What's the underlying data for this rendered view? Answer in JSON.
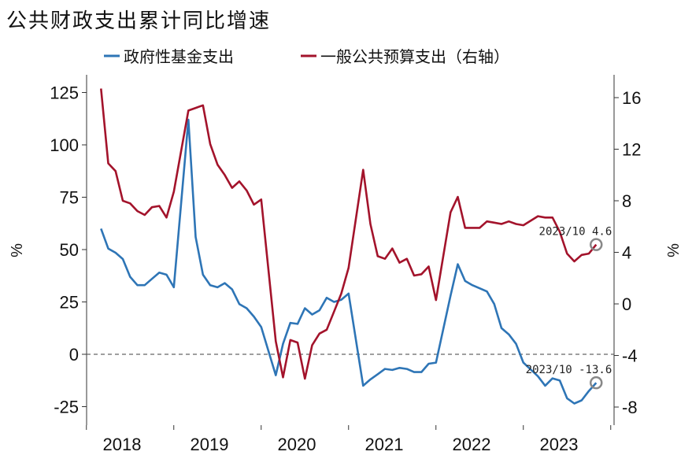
{
  "chart_data": {
    "type": "line",
    "title": "公共财政支出累计同比增速",
    "ylabel_left": "%",
    "ylabel_right": "%",
    "ylim_left": [
      -30,
      130
    ],
    "ylim_right": [
      -8.8,
      16.3
    ],
    "yticks_left": [
      125,
      100,
      75,
      50,
      25,
      0,
      -25
    ],
    "yticks_right": [
      16,
      12,
      8,
      4,
      0,
      -4,
      -8
    ],
    "year_labels": [
      "2018",
      "2019",
      "2020",
      "2021",
      "2022",
      "2023"
    ],
    "zero_line": "dashed",
    "legend_position": "top",
    "series": [
      {
        "name": "政府性基金支出",
        "axis": "left",
        "color": "#2e75b6",
        "x": [
          "2018-02",
          "2018-03",
          "2018-04",
          "2018-05",
          "2018-06",
          "2018-07",
          "2018-08",
          "2018-09",
          "2018-10",
          "2018-11",
          "2018-12",
          "2019-02",
          "2019-03",
          "2019-04",
          "2019-05",
          "2019-06",
          "2019-07",
          "2019-08",
          "2019-09",
          "2019-10",
          "2019-11",
          "2019-12",
          "2020-02",
          "2020-03",
          "2020-04",
          "2020-05",
          "2020-06",
          "2020-07",
          "2020-08",
          "2020-09",
          "2020-10",
          "2020-11",
          "2020-12",
          "2021-02",
          "2021-03",
          "2021-04",
          "2021-05",
          "2021-06",
          "2021-07",
          "2021-08",
          "2021-09",
          "2021-10",
          "2021-11",
          "2021-12",
          "2022-02",
          "2022-03",
          "2022-04",
          "2022-05",
          "2022-06",
          "2022-07",
          "2022-08",
          "2022-09",
          "2022-10",
          "2022-11",
          "2022-12",
          "2023-02",
          "2023-03",
          "2023-04",
          "2023-05",
          "2023-06",
          "2023-07",
          "2023-08",
          "2023-09",
          "2023-10"
        ],
        "values": [
          60,
          50.5,
          48.5,
          45.5,
          37,
          33,
          33,
          36,
          39,
          38,
          32,
          112,
          56,
          38,
          33,
          32,
          34,
          31,
          24,
          22,
          18,
          13,
          -10,
          5,
          15,
          14.5,
          22,
          19,
          21,
          27,
          25,
          26,
          29,
          -15,
          -12,
          -9.5,
          -7,
          -7.5,
          -6.5,
          -7,
          -8.5,
          -8.5,
          -4.5,
          -4,
          28,
          43,
          35,
          33,
          31.5,
          30,
          24,
          12.5,
          9.5,
          5,
          -4,
          -10.5,
          -15,
          -11.5,
          -12.5,
          -21,
          -23.5,
          -22,
          -17.5,
          -13.6
        ]
      },
      {
        "name": "一般公共预算支出（右轴）",
        "axis": "right",
        "color": "#a3132b",
        "x": [
          "2018-02",
          "2018-03",
          "2018-04",
          "2018-05",
          "2018-06",
          "2018-07",
          "2018-08",
          "2018-09",
          "2018-10",
          "2018-11",
          "2018-12",
          "2019-02",
          "2019-03",
          "2019-04",
          "2019-05",
          "2019-06",
          "2019-07",
          "2019-08",
          "2019-09",
          "2019-10",
          "2019-11",
          "2019-12",
          "2020-02",
          "2020-03",
          "2020-04",
          "2020-05",
          "2020-06",
          "2020-07",
          "2020-08",
          "2020-09",
          "2020-10",
          "2020-11",
          "2020-12",
          "2021-02",
          "2021-03",
          "2021-04",
          "2021-05",
          "2021-06",
          "2021-07",
          "2021-08",
          "2021-09",
          "2021-10",
          "2021-11",
          "2021-12",
          "2022-02",
          "2022-03",
          "2022-04",
          "2022-05",
          "2022-06",
          "2022-07",
          "2022-08",
          "2022-09",
          "2022-10",
          "2022-11",
          "2022-12",
          "2023-02",
          "2023-03",
          "2023-04",
          "2023-05",
          "2023-06",
          "2023-07",
          "2023-08",
          "2023-09",
          "2023-10"
        ],
        "values": [
          16.7,
          10.9,
          10.3,
          8.0,
          7.8,
          7.2,
          6.9,
          7.5,
          7.6,
          6.7,
          8.7,
          15.0,
          15.2,
          15.4,
          12.4,
          10.8,
          10.0,
          9.0,
          9.5,
          8.8,
          7.7,
          8.1,
          -2.9,
          -5.7,
          -2.8,
          -3.0,
          -5.8,
          -3.2,
          -2.3,
          -2.0,
          -0.6,
          0.8,
          2.8,
          10.4,
          6.2,
          3.7,
          3.5,
          4.3,
          3.2,
          3.5,
          2.2,
          2.3,
          2.9,
          0.3,
          7.1,
          8.3,
          5.9,
          5.9,
          5.9,
          6.4,
          6.3,
          6.2,
          6.4,
          6.2,
          6.1,
          6.8,
          6.7,
          6.7,
          5.6,
          3.9,
          3.3,
          3.8,
          3.9,
          4.6
        ]
      }
    ],
    "annotations": [
      {
        "text": "2023/10  4.6",
        "series": 1
      },
      {
        "text": "2023/10  -13.6",
        "series": 0
      }
    ]
  }
}
